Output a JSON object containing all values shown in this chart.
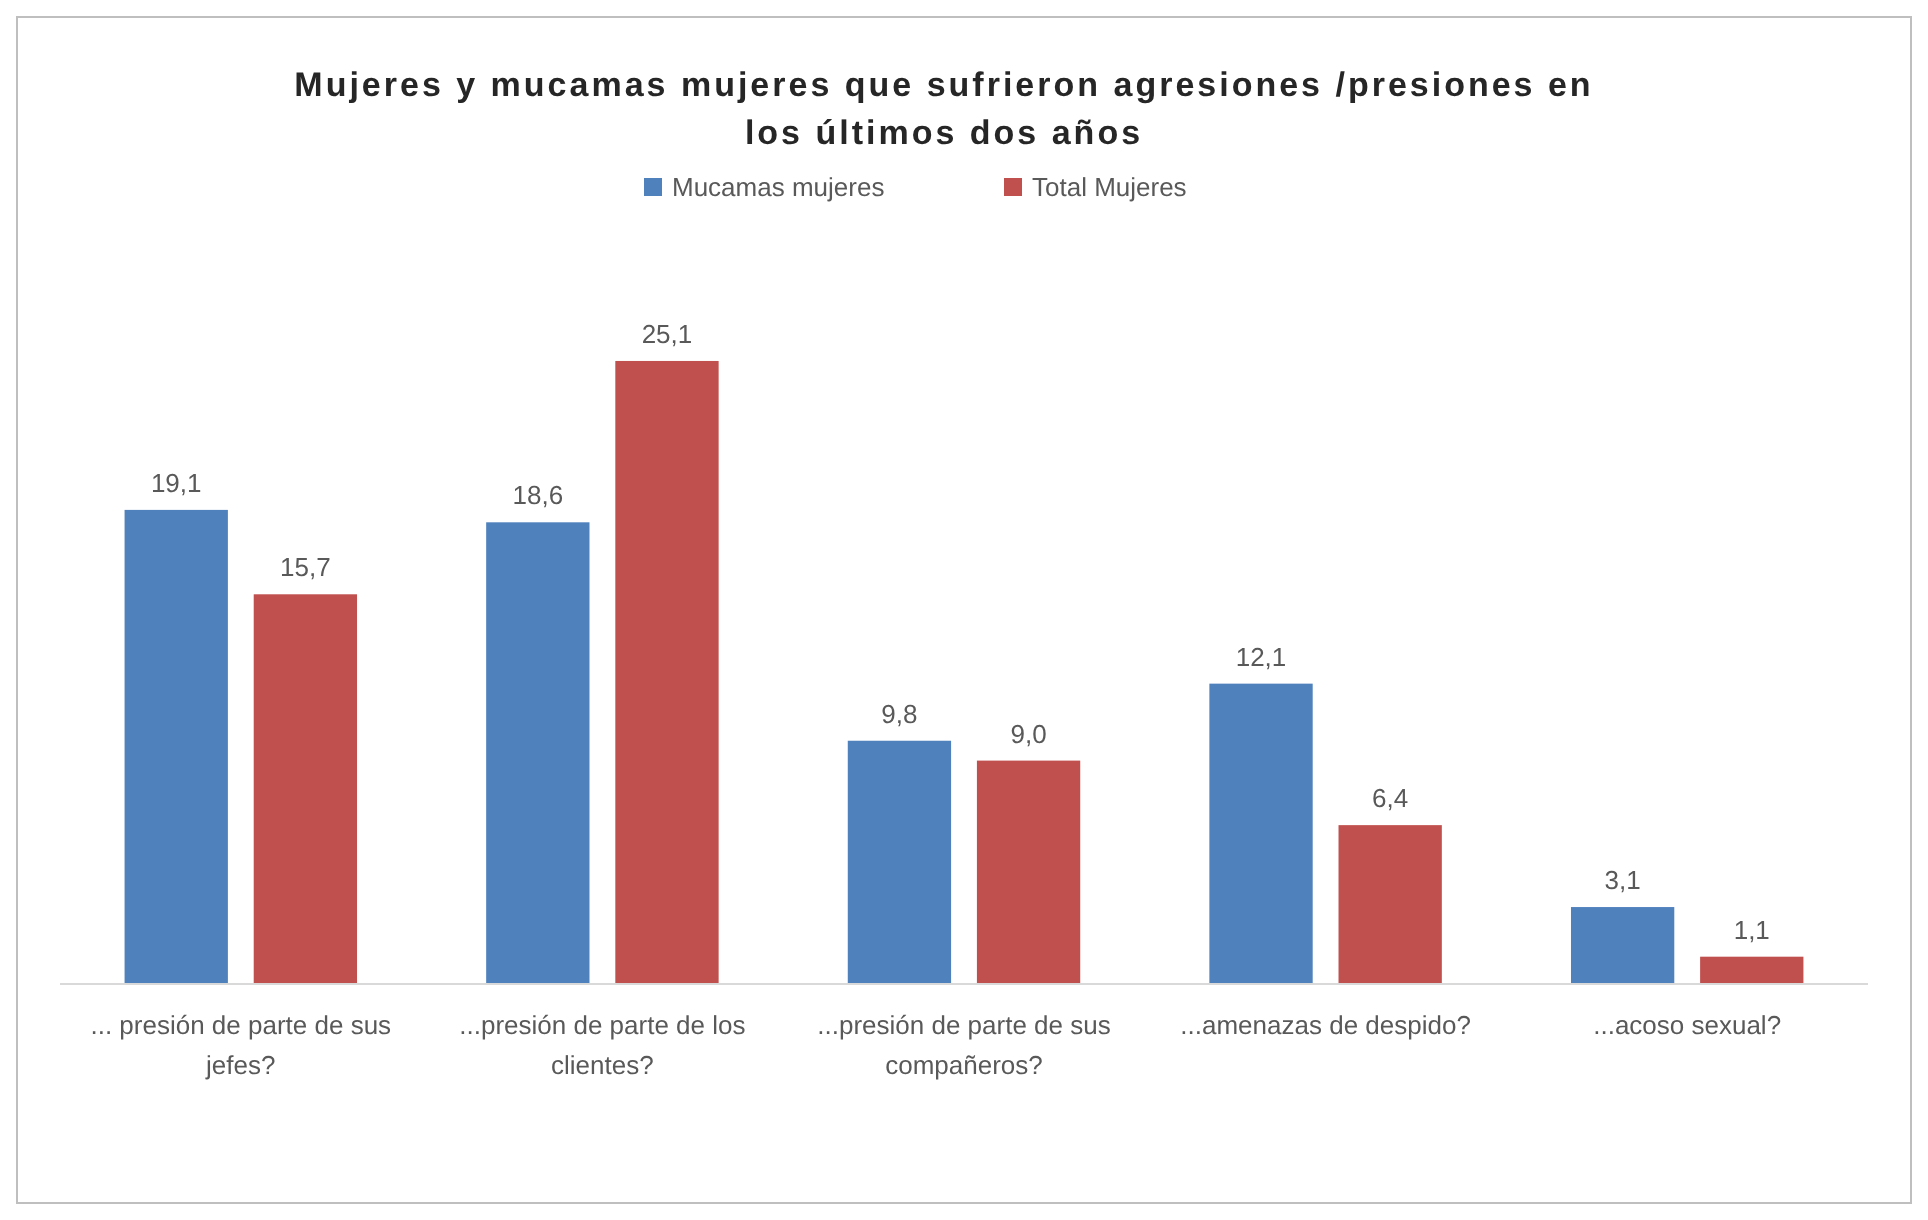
{
  "chart_data": {
    "type": "bar",
    "title": "Mujeres y mucamas mujeres que sufrieron agresiones /presiones en los últimos dos años",
    "categories": [
      "... presión de parte de sus jefes?",
      "...presión de parte de los clientes?",
      "...presión de parte de sus compañeros?",
      "...amenazas de despido?",
      "...acoso sexual?"
    ],
    "series": [
      {
        "name": "Mucamas mujeres",
        "color": "#4f81bd",
        "values": [
          19.1,
          18.6,
          9.8,
          12.1,
          3.1
        ],
        "value_labels": [
          "19,1",
          "18,6",
          "9,8",
          "12,1",
          "3,1"
        ]
      },
      {
        "name": "Total Mujeres",
        "color": "#c0504d",
        "values": [
          15.7,
          25.1,
          9.0,
          6.4,
          1.1
        ],
        "value_labels": [
          "15,7",
          "25,1",
          "9,0",
          "6,4",
          "1,1"
        ]
      }
    ],
    "legend": "top"
  }
}
